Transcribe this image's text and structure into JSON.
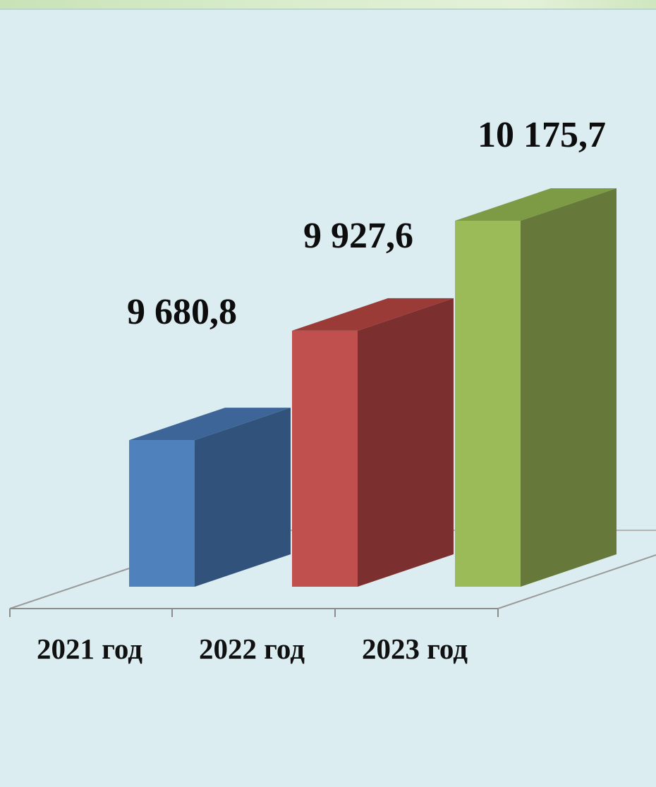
{
  "chart_data": {
    "type": "bar",
    "categories": [
      "2021 год",
      "2022 год",
      "2023 год"
    ],
    "values": [
      9680.8,
      9927.6,
      10175.7
    ],
    "value_labels": [
      "9 680,8",
      "9 927,6",
      "10 175,7"
    ],
    "title": "",
    "xlabel": "",
    "ylabel": "",
    "ylim": [
      9350,
      10400
    ],
    "grid": false,
    "legend": "none",
    "style": "3d-column",
    "colors": {
      "front": [
        "#4f81bd",
        "#c0504d",
        "#9bbb59"
      ],
      "side": [
        "#31527a",
        "#7b2f2f",
        "#66793a"
      ],
      "top": [
        "#3d6598",
        "#9a3b38",
        "#7d9a45"
      ]
    }
  }
}
